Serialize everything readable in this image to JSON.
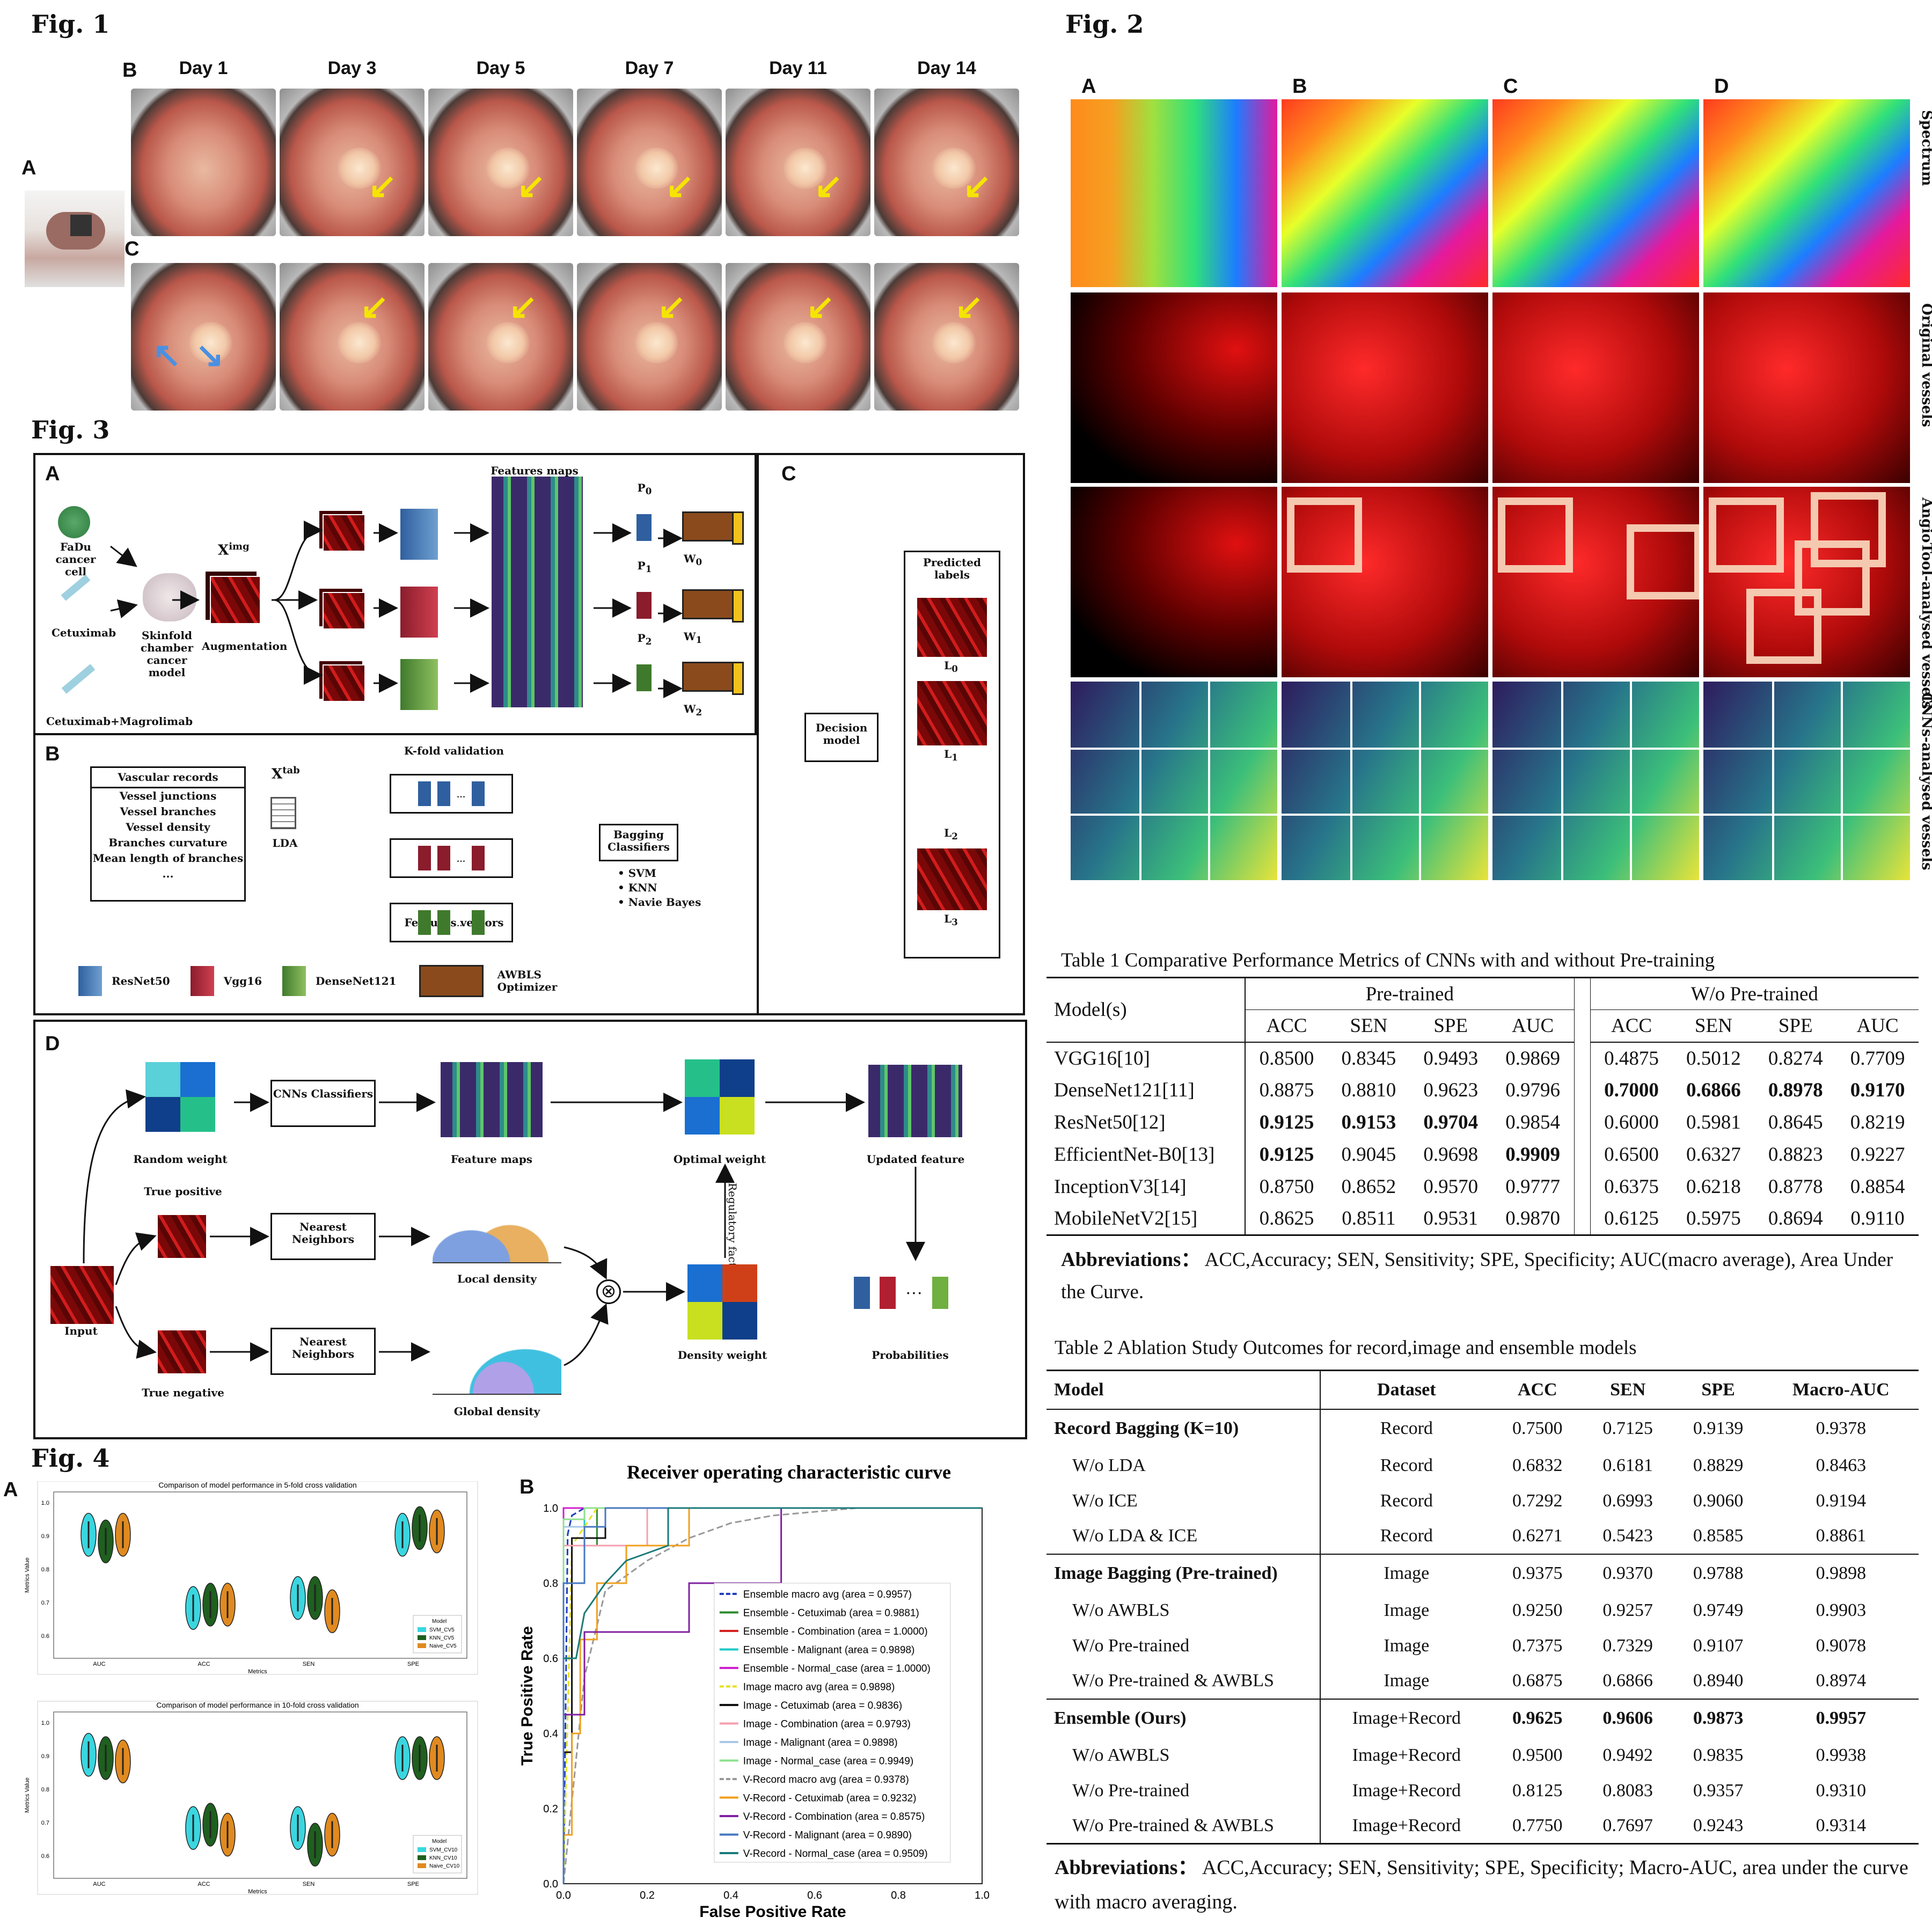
{
  "fig1": {
    "title": "Fig. 1",
    "label_a": "A",
    "label_b": "B",
    "label_c": "C",
    "days": [
      "Day 1",
      "Day 3",
      "Day 5",
      "Day 7",
      "Day 11",
      "Day 14"
    ]
  },
  "fig2": {
    "title": "Fig. 2",
    "cols": [
      "A",
      "B",
      "C",
      "D"
    ],
    "rows": [
      "Spectrum",
      "Original vessels",
      "AngioTool-analysed vessels",
      "CNNs-analysed vessels"
    ]
  },
  "fig3": {
    "title": "Fig. 3",
    "panel_a": "A",
    "panel_b": "B",
    "panel_c": "C",
    "panel_d": "D",
    "fadu": "FaDu cancer cell",
    "cetuximab": "Cetuximab",
    "cetmag": "Cetuximab+Magrolimab",
    "chamber": "Skinfold chamber cancer model",
    "ximg": "X",
    "ximg_sup": "img",
    "augment": "Augmentation",
    "featmaps": "Features maps",
    "p0": "P",
    "p0s": "0",
    "p1": "P",
    "p1s": "1",
    "p2": "P",
    "p2s": "2",
    "w0": "W",
    "w0s": "0",
    "w1": "W",
    "w1s": "1",
    "w2": "W",
    "w2s": "2",
    "predicted": "Predicted labels",
    "l0": "L",
    "l0s": "0",
    "l1": "L",
    "l1s": "1",
    "l2": "L",
    "l2s": "2",
    "l3": "L",
    "l3s": "3",
    "decision": "Decision model",
    "vasc_title": "Vascular records",
    "vasc_items": [
      "Vessel junctions",
      "Vessel branches",
      "Vessel density",
      "Branches curvature",
      "Mean length of branches",
      "..."
    ],
    "xtab": "X",
    "xtab_sup": "tab",
    "lda": "LDA",
    "kfold": "K-fold validation",
    "featvec": "Features vectors",
    "bagging": "Bagging Classifiers",
    "bag_items": [
      "• SVM",
      "• KNN",
      "• Navie Bayes"
    ],
    "legend": {
      "resnet": "ResNet50",
      "vgg": "Vgg16",
      "dense": "DenseNet121",
      "awbls": "AWBLS Optimizer"
    },
    "d": {
      "random": "Random weight",
      "cnns": "CNNs Classifiers",
      "featmaps": "Feature maps",
      "optimal": "Optimal weight",
      "updated": "Updated feature",
      "tp": "True positive",
      "tn": "True negative",
      "nn1": "Nearest Neighbors",
      "nn2": "Nearest Neighbors",
      "local": "Local density",
      "global": "Global density",
      "density": "Density weight",
      "probs": "Probabilities",
      "input": "Input",
      "reg": "Regulatory factor"
    }
  },
  "fig4": {
    "title": "Fig. 4",
    "label_a": "A",
    "label_b": "B",
    "violin1_title": "Comparison of model performance in 5-fold cross validation",
    "violin2_title": "Comparison of model performance in 10-fold cross validation",
    "violin_xlabel": "Metrics",
    "violin_ylabel": "Metrics Value",
    "violin_cats": [
      "AUC",
      "ACC",
      "SEN",
      "SPE"
    ],
    "legend_title": "Model",
    "legend5": [
      "SVM_CV5",
      "KNN_CV5",
      "Naive_CV5"
    ],
    "legend10": [
      "SVM_CV10",
      "KNN_CV10",
      "Naive_CV10"
    ],
    "yticks": [
      "1.0",
      "0.9",
      "0.8",
      "0.7",
      "0.6"
    ]
  },
  "chart_data": {
    "type": "line",
    "title": "Receiver operating characteristic curve",
    "xlabel": "False Positive Rate",
    "ylabel": "True Positive Rate",
    "xlim": [
      0,
      1
    ],
    "ylim": [
      0,
      1
    ],
    "xticks": [
      "0.0",
      "0.2",
      "0.4",
      "0.6",
      "0.8",
      "1.0"
    ],
    "yticks": [
      "0.0",
      "0.2",
      "0.4",
      "0.6",
      "0.8",
      "1.0"
    ],
    "series": [
      {
        "name": "Ensemble macro avg (area = 0.9957)",
        "color": "#1f3fbf",
        "dash": "12,6",
        "x": [
          0,
          0.01,
          0.02,
          0.05,
          1
        ],
        "y": [
          0,
          0.93,
          0.98,
          1,
          1
        ]
      },
      {
        "name": "Ensemble - Cetuximab (area = 0.9881)",
        "color": "#2e8b2e",
        "dash": "",
        "x": [
          0,
          0,
          0.08,
          0.08,
          1
        ],
        "y": [
          0,
          0.9,
          0.9,
          1,
          1
        ]
      },
      {
        "name": "Ensemble - Combination (area = 1.0000)",
        "color": "#d62020",
        "dash": "",
        "x": [
          0,
          0,
          1
        ],
        "y": [
          0,
          1,
          1
        ]
      },
      {
        "name": "Ensemble - Malignant (area = 0.9898)",
        "color": "#20c8c8",
        "dash": "",
        "x": [
          0,
          0,
          0.05,
          0.05,
          1
        ],
        "y": [
          0,
          0.95,
          0.95,
          1,
          1
        ]
      },
      {
        "name": "Ensemble - Normal_case (area = 1.0000)",
        "color": "#d020d0",
        "dash": "",
        "x": [
          0,
          0,
          1
        ],
        "y": [
          0,
          1,
          1
        ]
      },
      {
        "name": "Image macro avg (area = 0.9898)",
        "color": "#e8e020",
        "dash": "10,6",
        "x": [
          0,
          0.02,
          0.08,
          1
        ],
        "y": [
          0,
          0.9,
          1,
          1
        ]
      },
      {
        "name": "Image - Cetuximab (area = 0.9836)",
        "color": "#111111",
        "dash": "",
        "x": [
          0,
          0,
          0.02,
          0.02,
          0.1,
          0.1,
          1
        ],
        "y": [
          0,
          0.35,
          0.35,
          0.92,
          0.92,
          1,
          1
        ]
      },
      {
        "name": "Image - Combination (area = 0.9793)",
        "color": "#f4a0b0",
        "dash": "",
        "x": [
          0,
          0,
          0.2,
          0.2,
          1
        ],
        "y": [
          0,
          0.9,
          0.9,
          1,
          1
        ]
      },
      {
        "name": "Image - Malignant (area = 0.9898)",
        "color": "#a8c8e8",
        "dash": "",
        "x": [
          0,
          0,
          0.1,
          0.1,
          1
        ],
        "y": [
          0,
          0.95,
          0.95,
          1,
          1
        ]
      },
      {
        "name": "Image - Normal_case (area = 0.9949)",
        "color": "#90e090",
        "dash": "",
        "x": [
          0,
          0,
          0.05,
          0.05,
          1
        ],
        "y": [
          0,
          0.97,
          0.97,
          1,
          1
        ]
      },
      {
        "name": "V-Record macro avg (area = 0.9378)",
        "color": "#999999",
        "dash": "12,6",
        "x": [
          0,
          0.05,
          0.1,
          0.2,
          0.3,
          0.4,
          0.5,
          0.7,
          1
        ],
        "y": [
          0,
          0.55,
          0.78,
          0.86,
          0.92,
          0.96,
          0.98,
          1,
          1
        ]
      },
      {
        "name": "V-Record - Cetuximab (area = 0.9232)",
        "color": "#f0a020",
        "dash": "",
        "x": [
          0,
          0.02,
          0.02,
          0.04,
          0.04,
          0.08,
          0.08,
          0.15,
          0.15,
          0.3,
          0.3,
          1
        ],
        "y": [
          0.13,
          0.13,
          0.4,
          0.4,
          0.65,
          0.65,
          0.8,
          0.8,
          0.9,
          0.9,
          1,
          1
        ]
      },
      {
        "name": "V-Record - Combination (area = 0.8575)",
        "color": "#8020a0",
        "dash": "",
        "x": [
          0,
          0.05,
          0.05,
          0.2,
          0.2,
          0.3,
          0.3,
          0.52,
          0.52,
          1
        ],
        "y": [
          0.45,
          0.45,
          0.67,
          0.67,
          0.67,
          0.67,
          0.8,
          0.8,
          1,
          1
        ]
      },
      {
        "name": "V-Record - Malignant (area = 0.9890)",
        "color": "#4878c0",
        "dash": "",
        "x": [
          0,
          0,
          0.05,
          0.05,
          0.1,
          0.1,
          1
        ],
        "y": [
          0,
          0.8,
          0.8,
          0.95,
          0.95,
          1,
          1
        ]
      },
      {
        "name": "V-Record - Normal_case (area = 0.9509)",
        "color": "#1a7a7a",
        "dash": "",
        "x": [
          0,
          0.03,
          0.05,
          0.1,
          0.15,
          0.25,
          0.25,
          1
        ],
        "y": [
          0.6,
          0.6,
          0.72,
          0.8,
          0.86,
          0.9,
          1,
          1
        ]
      }
    ]
  },
  "table1": {
    "caption": "Table 1 Comparative Performance Metrics of CNNs with and without Pre-training",
    "model_h": "Model(s)",
    "pre_h": "Pre-trained",
    "wo_h": "W/o Pre-trained",
    "metrics": [
      "ACC",
      "SEN",
      "SPE",
      "AUC"
    ],
    "rows": [
      [
        "VGG16[10]",
        "0.8500",
        "0.8345",
        "0.9493",
        "0.9869",
        "0.4875",
        "0.5012",
        "0.8274",
        "0.7709"
      ],
      [
        "DenseNet121[11]",
        "0.8875",
        "0.8810",
        "0.9623",
        "0.9796",
        "0.7000",
        "0.6866",
        "0.8978",
        "0.9170"
      ],
      [
        "ResNet50[12]",
        "0.9125",
        "0.9153",
        "0.9704",
        "0.9854",
        "0.6000",
        "0.5981",
        "0.8645",
        "0.8219"
      ],
      [
        "EfficientNet-B0[13]",
        "0.9125",
        "0.9045",
        "0.9698",
        "0.9909",
        "0.6500",
        "0.6327",
        "0.8823",
        "0.9227"
      ],
      [
        "InceptionV3[14]",
        "0.8750",
        "0.8652",
        "0.9570",
        "0.9777",
        "0.6375",
        "0.6218",
        "0.8778",
        "0.8854"
      ],
      [
        "MobileNetV2[15]",
        "0.8625",
        "0.8511",
        "0.9531",
        "0.9870",
        "0.6125",
        "0.5975",
        "0.8694",
        "0.9110"
      ]
    ],
    "abbr_bold": "Abbreviations：",
    "abbr": "ACC,Accuracy; SEN, Sensitivity; SPE, Specificity; AUC(macro average), Area Under the Curve."
  },
  "table2": {
    "caption": "Table 2 Ablation Study Outcomes for record,image and ensemble models",
    "headers": [
      "Model",
      "Dataset",
      "ACC",
      "SEN",
      "SPE",
      "Macro-AUC"
    ],
    "groups": [
      {
        "head": [
          "Record Bagging (K=10)",
          "Record",
          "0.7500",
          "0.7125",
          "0.9139",
          "0.9378"
        ],
        "rows": [
          [
            "W/o LDA",
            "Record",
            "0.6832",
            "0.6181",
            "0.8829",
            "0.8463"
          ],
          [
            "W/o ICE",
            "Record",
            "0.7292",
            "0.6993",
            "0.9060",
            "0.9194"
          ],
          [
            "W/o LDA & ICE",
            "Record",
            "0.6271",
            "0.5423",
            "0.8585",
            "0.8861"
          ]
        ]
      },
      {
        "head": [
          "Image Bagging (Pre-trained)",
          "Image",
          "0.9375",
          "0.9370",
          "0.9788",
          "0.9898"
        ],
        "rows": [
          [
            "W/o AWBLS",
            "Image",
            "0.9250",
            "0.9257",
            "0.9749",
            "0.9903"
          ],
          [
            "W/o Pre-trained",
            "Image",
            "0.7375",
            "0.7329",
            "0.9107",
            "0.9078"
          ],
          [
            "W/o Pre-trained & AWBLS",
            "Image",
            "0.6875",
            "0.6866",
            "0.8940",
            "0.8974"
          ]
        ]
      },
      {
        "head": [
          "Ensemble (Ours)",
          "Image+Record",
          "0.9625",
          "0.9606",
          "0.9873",
          "0.9957"
        ],
        "rows": [
          [
            "W/o AWBLS",
            "Image+Record",
            "0.9500",
            "0.9492",
            "0.9835",
            "0.9938"
          ],
          [
            "W/o Pre-trained",
            "Image+Record",
            "0.8125",
            "0.8083",
            "0.9357",
            "0.9310"
          ],
          [
            "W/o Pre-trained & AWBLS",
            "Image+Record",
            "0.7750",
            "0.7697",
            "0.9243",
            "0.9314"
          ]
        ]
      }
    ],
    "abbr_bold": "Abbreviations：",
    "abbr": "ACC,Accuracy; SEN, Sensitivity; SPE, Specificity; Macro-AUC, area under the curve with macro averaging."
  }
}
